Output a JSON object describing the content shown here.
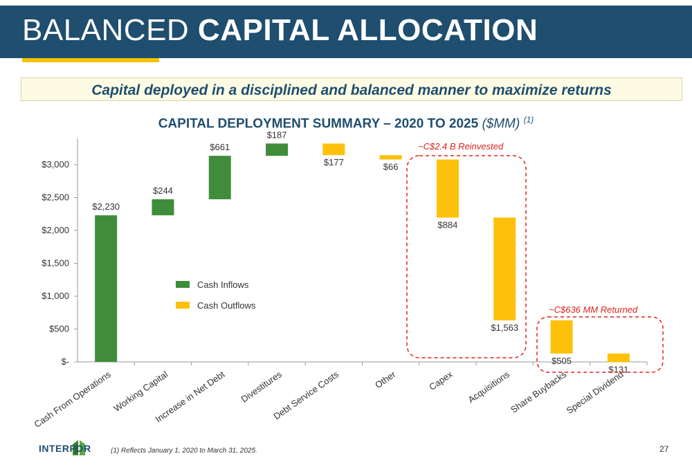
{
  "title": {
    "light": "BALANCED",
    "bold": "CAPITAL ALLOCATION"
  },
  "banner": "Capital deployed in a disciplined and balanced manner to maximize returns",
  "chart_title": {
    "main": "CAPITAL DEPLOYMENT SUMMARY – 2020 TO 2025",
    "unit": "($MM)",
    "note": "(1)"
  },
  "chart_data": {
    "type": "bar",
    "subtype": "waterfall",
    "categories": [
      "Cash From Operations",
      "Working Capital",
      "Increase in Net Debt",
      "Divestitures",
      "Debt Service Costs",
      "Other",
      "Capex",
      "Acquisitions",
      "Share Buybacks",
      "Special Dividend"
    ],
    "value_labels": [
      "$2,230",
      "$244",
      "$661",
      "$187",
      "$177",
      "$66",
      "$884",
      "$1,563",
      "$505",
      "$131"
    ],
    "values": [
      2230,
      244,
      661,
      187,
      -177,
      -66,
      -884,
      -1563,
      -505,
      -131
    ],
    "series": [
      {
        "name": "Cash Inflows",
        "color": "#3f8d3a"
      },
      {
        "name": "Cash Outflows",
        "color": "#fec10b"
      }
    ],
    "ylim": [
      0,
      3400
    ],
    "yticks": [
      0,
      500,
      1000,
      1500,
      2000,
      2500,
      3000
    ],
    "ytick_labels": [
      "$-",
      "$500",
      "$1,000",
      "$1,500",
      "$2,000",
      "$2,500",
      "$3,000"
    ],
    "annotations": [
      {
        "text": "~C$2.4 B Reinvested",
        "color": "#e0211b"
      },
      {
        "text": "~C$636 MM Returned",
        "color": "#e0211b"
      }
    ],
    "legend_position": "center-left"
  },
  "footnote": "(1)    Reflects January 1, 2020 to March 31, 2025.",
  "logo": "INTERFOR",
  "page_number": "27"
}
